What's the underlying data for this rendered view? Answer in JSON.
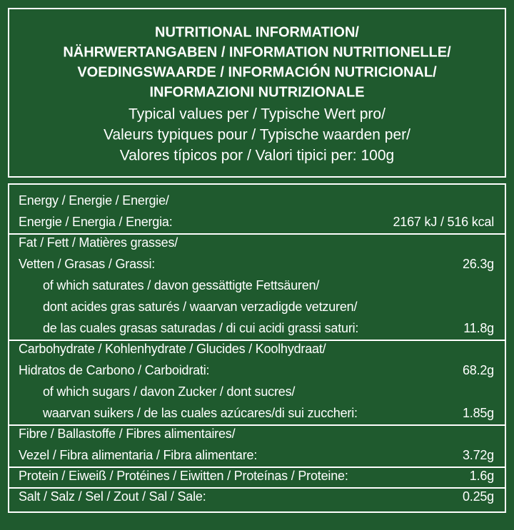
{
  "header": {
    "title_lines": [
      "NUTRITIONAL INFORMATION/",
      "NÄHRWERTANGABEN / INFORMATION NUTRITIONELLE/",
      "VOEDINGSWAARDE / INFORMACIÓN NUTRICIONAL/",
      "INFORMAZIONI NUTRIZIONALE"
    ],
    "subtitle_lines": [
      "Typical values per / Typische Wert pro/",
      "Valeurs typiques pour / Typische waarden per/",
      "Valores típicos por / Valori tipici per: 100g"
    ]
  },
  "table": {
    "rows": [
      {
        "label_lines": [
          "Energy / Energie / Energie/",
          "Energie / Energia / Energia:"
        ],
        "value": "2167 kJ / 516 kcal"
      },
      {
        "label_lines": [
          "Fat / Fett / Matières grasses/",
          "Vetten / Grasas / Grassi:"
        ],
        "value": "26.3g",
        "sub": {
          "label_lines": [
            "of which saturates / davon gessättigte Fettsäuren/",
            "dont acides gras saturés / waarvan verzadigde vetzuren/",
            "de las cuales grasas saturadas / di cui acidi grassi saturi:"
          ],
          "value": "11.8g"
        }
      },
      {
        "label_lines": [
          "Carbohydrate / Kohlenhydrate / Glucides / Koolhydraat/",
          "Hidratos de Carbono / Carboidrati:"
        ],
        "value": "68.2g",
        "sub": {
          "label_lines": [
            "of which sugars / davon Zucker / dont sucres/",
            "waarvan suikers / de las cuales azúcares/di sui zuccheri:"
          ],
          "value": "1.85g"
        }
      },
      {
        "label_lines": [
          "Fibre / Ballastoffe / Fibres alimentaires/",
          "Vezel / Fibra alimentaria / Fibra alimentare:"
        ],
        "value": "3.72g"
      },
      {
        "label_lines": [
          "Protein / Eiweiß / Protéines / Eiwitten / Proteínas / Proteine:"
        ],
        "value": "1.6g"
      },
      {
        "label_lines": [
          "Salt / Salz / Sel / Zout / Sal / Sale:"
        ],
        "value": "0.25g"
      }
    ]
  }
}
